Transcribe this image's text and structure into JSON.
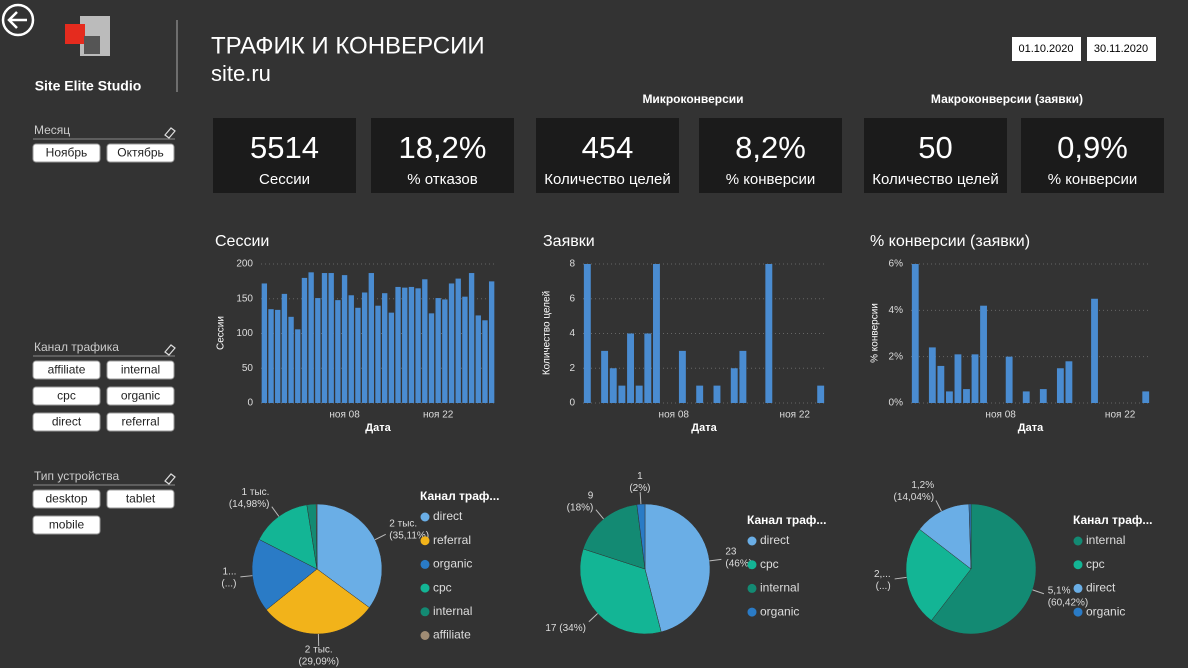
{
  "header": {
    "brand": "Site Elite Studio",
    "title": "ТРАФИК И КОНВЕРСИИ",
    "subtitle": "site.ru",
    "date_from": "01.10.2020",
    "date_to": "30.11.2020",
    "micro_label": "Микроконверсии",
    "macro_label": "Макроконверсии (заявки)"
  },
  "filters": [
    {
      "label": "Месяц",
      "options": [
        "Ноябрь",
        "Октябрь"
      ]
    },
    {
      "label": "Канал трафика",
      "options": [
        "affiliate",
        "internal",
        "cpc",
        "organic",
        "direct",
        "referral"
      ]
    },
    {
      "label": "Тип устройства",
      "options": [
        "desktop",
        "tablet",
        "mobile"
      ]
    }
  ],
  "kpis": [
    {
      "value": 5514,
      "label": "Сессии"
    },
    {
      "value": "18,2%",
      "label": "% отказов"
    },
    {
      "value": 454,
      "label": "Количество целей"
    },
    {
      "value": "8,2%",
      "label": "% конверсии"
    },
    {
      "value": 50,
      "label": "Количество целей"
    },
    {
      "value": "0,9%",
      "label": "% конверсии"
    }
  ],
  "chart_data": [
    {
      "type": "bar",
      "title": "Сессии",
      "ylabel": "Сессии",
      "xlabel": "Дата",
      "color": "#4a8cd1",
      "grid": true,
      "ylim": [
        0,
        200
      ],
      "yticks": [
        0,
        50,
        100,
        150,
        200
      ],
      "categories": [
        null,
        null,
        null,
        null,
        null,
        null,
        null,
        null,
        null,
        null,
        null,
        null,
        "ноя 08",
        null,
        null,
        null,
        null,
        null,
        null,
        null,
        null,
        null,
        null,
        null,
        null,
        null,
        "ноя 22",
        null,
        null,
        null,
        null,
        null,
        null,
        null,
        null
      ],
      "values": [
        172,
        135,
        134,
        157,
        124,
        106,
        180,
        188,
        151,
        187,
        187,
        148,
        184,
        155,
        137,
        159,
        187,
        140,
        158,
        130,
        167,
        166,
        167,
        165,
        178,
        129,
        151,
        149,
        172,
        179,
        153,
        187,
        126,
        119,
        175
      ]
    },
    {
      "type": "bar",
      "title": "Заявки",
      "ylabel": "Количество целей",
      "xlabel": "Дата",
      "color": "#4a8cd1",
      "grid": true,
      "ylim": [
        0,
        8
      ],
      "yticks": [
        0,
        2,
        4,
        6,
        8
      ],
      "categories": [
        null,
        null,
        null,
        null,
        null,
        null,
        null,
        null,
        null,
        null,
        "ноя 08",
        null,
        null,
        null,
        null,
        null,
        null,
        null,
        null,
        null,
        null,
        null,
        null,
        null,
        "ноя 22",
        null,
        null,
        null
      ],
      "values": [
        8,
        0,
        3,
        2,
        1,
        4,
        1,
        4,
        8,
        0,
        0,
        3,
        0,
        1,
        0,
        1,
        0,
        2,
        3,
        0,
        0,
        8,
        0,
        0,
        0,
        0,
        0,
        1
      ]
    },
    {
      "type": "bar",
      "title": "% конверсии (заявки)",
      "ylabel": "% конверсии",
      "xlabel": "Дата",
      "color": "#4a8cd1",
      "grid": true,
      "ylim": [
        0,
        6
      ],
      "yticks": [
        {
          "value": 0,
          "label": "0%"
        },
        {
          "value": 2,
          "label": "2%"
        },
        {
          "value": 4,
          "label": "4%"
        },
        {
          "value": 6,
          "label": "6%"
        }
      ],
      "categories": [
        null,
        null,
        null,
        null,
        null,
        null,
        null,
        null,
        null,
        null,
        "ноя 08",
        null,
        null,
        null,
        null,
        null,
        null,
        null,
        null,
        null,
        null,
        null,
        null,
        null,
        "ноя 22",
        null,
        null,
        null
      ],
      "values": [
        6.0,
        0,
        2.4,
        1.6,
        0.5,
        2.1,
        0.6,
        2.1,
        4.2,
        0,
        0,
        2.0,
        0,
        0.5,
        0,
        0.6,
        0,
        1.5,
        1.8,
        0,
        0,
        4.5,
        0,
        0,
        0,
        0,
        0,
        0.5
      ]
    },
    {
      "type": "pie",
      "legend_title": "Канал траф...",
      "categories": [
        "direct",
        "referral",
        "organic",
        "cpc",
        "internal",
        "affiliate"
      ],
      "values": [
        35.11,
        29.09,
        18.32,
        14.98,
        2.3,
        0.2
      ],
      "value_labels": [
        [
          "2 тыс.",
          "(35,11%)"
        ],
        [
          "2 тыс.",
          "(29,09%)"
        ],
        [
          "1...",
          "(...)"
        ],
        [
          "1 тыс.",
          "(14,98%)"
        ],
        null,
        null
      ],
      "colors": [
        "#6aaee6",
        "#f2b31a",
        "#2a7bc6",
        "#13b595",
        "#138a73",
        "#a08c74"
      ]
    },
    {
      "type": "pie",
      "legend_title": "Канал траф...",
      "categories": [
        "direct",
        "cpc",
        "internal",
        "organic"
      ],
      "values": [
        23,
        17,
        9,
        1
      ],
      "value_labels": [
        [
          "23",
          "(46%)"
        ],
        [
          "17 (34%)"
        ],
        [
          "9",
          "(18%)"
        ],
        [
          "1",
          "(2%)"
        ]
      ],
      "colors": [
        "#6aaee6",
        "#13b595",
        "#138a73",
        "#2a7bc6"
      ]
    },
    {
      "type": "pie",
      "legend_title": "Канал траф...",
      "categories": [
        "internal",
        "cpc",
        "direct",
        "organic"
      ],
      "values": [
        60.42,
        25.04,
        14.04,
        0.5
      ],
      "value_labels": [
        [
          "5,1%",
          "(60,42%)"
        ],
        [
          "2,...",
          "(...)"
        ],
        [
          "1,2%",
          "(14,04%)"
        ],
        null
      ],
      "colors": [
        "#138a73",
        "#13b595",
        "#6aaee6",
        "#2a7bc6"
      ]
    }
  ]
}
